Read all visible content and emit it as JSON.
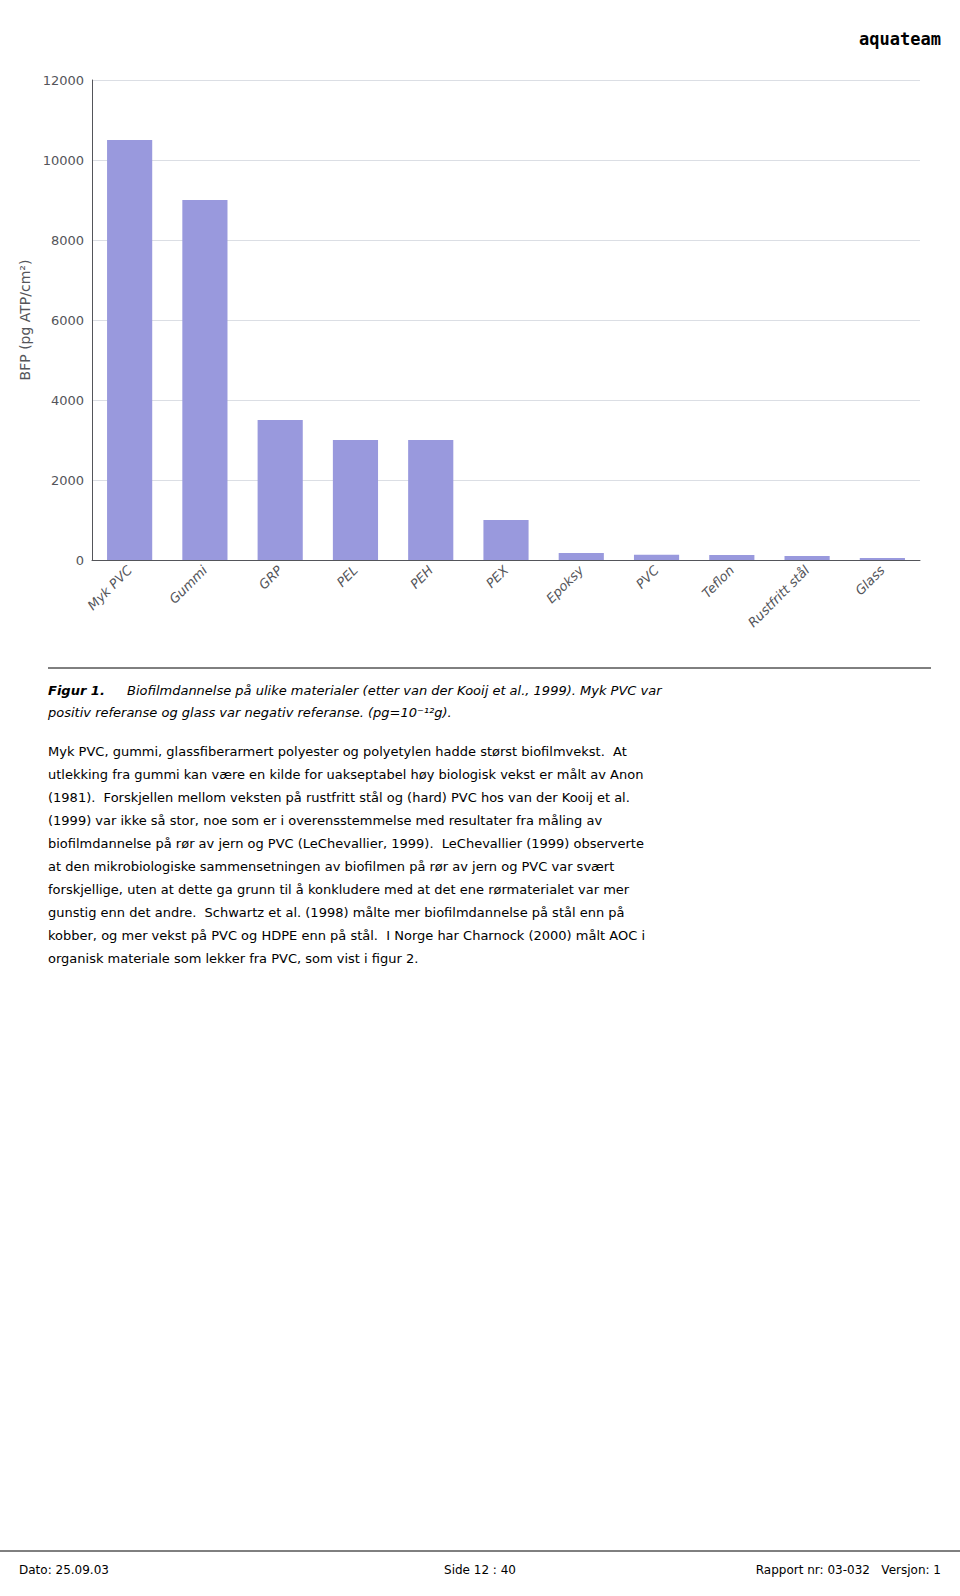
{
  "chart_data": {
    "type": "bar",
    "categories": [
      "Myk PVC",
      "Gummi",
      "GRP",
      "PEL",
      "PEH",
      "PEX",
      "Epoksy",
      "PVC",
      "Teflon",
      "Rustfritt stål",
      "Glass"
    ],
    "values": [
      10500,
      9000,
      3500,
      3000,
      3000,
      1000,
      175,
      130,
      125,
      100,
      50
    ],
    "color": "#9999DD",
    "ylabel": "BFP (pg ATP/cm²)",
    "ylim": [
      0,
      12000
    ],
    "yticks": [
      0,
      2000,
      4000,
      6000,
      8000,
      10000,
      12000
    ],
    "grid": true,
    "annotations": [
      "aquateam",
      "Figur 1.",
      "Biofilmdannelse på ulike materialer (etter van der Kooij et al., 1999). Myk PVC var",
      "positiv referanse og glass var negativ referanse. (pg=10⁻¹²g).",
      "Myk PVC, gummi, glassfiberarmert polyester og polyetylen hadde størst biofilmvekst.  At",
      "utlekking fra gummi kan være en kilde for uakseptabel høy biologisk vekst er målt av Anon",
      "(1981).  Forskjellen mellom veksten på rustfritt stål og (hard) PVC hos van der Kooij et al.",
      "(1999) var ikke så stor, noe som er i overensstemmelse med resultater fra måling av",
      "biofilmdannelse på rør av jern og PVC (LeChevallier, 1999).  LeChevallier (1999) observerte",
      "at den mikrobiologiske sammensetningen av biofilmen på rør av jern og PVC var svært",
      "forskjellige, uten at dette ga grunn til å konkludere med at det ene rørmaterialet var mer",
      "gunstig enn det andre.  Schwartz et al. (1998) målte mer biofilmdannelse på stål enn på",
      "kobber, og mer vekst på PVC og HDPE enn på stål.  I Norge har Charnock (2000) målt AOC i",
      "organisk materiale som lekker fra PVC, som vist i figur 2.",
      "Dato: 25.09.03",
      "Side 12 : 40",
      "Rapport nr: 03-032   Versjon: 1"
    ]
  }
}
